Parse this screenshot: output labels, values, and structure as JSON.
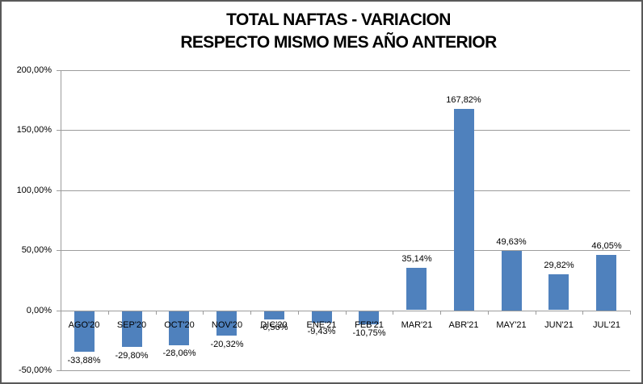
{
  "title": {
    "line1": "TOTAL NAFTAS - VARIACION",
    "line2": "RESPECTO MISMO MES AÑO ANTERIOR"
  },
  "chart_data": {
    "type": "bar",
    "title": "TOTAL NAFTAS - VARIACION RESPECTO MISMO MES AÑO ANTERIOR",
    "categories": [
      "AGO'20",
      "SEP'20",
      "OCT'20",
      "NOV'20",
      "DIC'20",
      "ENE'21",
      "FEB'21",
      "MAR'21",
      "ABR'21",
      "MAY'21",
      "JUN'21",
      "JUL'21"
    ],
    "values": [
      -33.88,
      -29.8,
      -28.06,
      -20.32,
      -6.56,
      -9.43,
      -10.75,
      35.14,
      167.82,
      49.63,
      29.82,
      46.05
    ],
    "value_labels": [
      "-33,88%",
      "-29,80%",
      "-28,06%",
      "-20,32%",
      "-6,56%",
      "-9,43%",
      "-10,75%",
      "35,14%",
      "167,82%",
      "49,63%",
      "29,82%",
      "46,05%"
    ],
    "y_tick_values": [
      200,
      150,
      100,
      50,
      0,
      -50
    ],
    "y_tick_labels": [
      "200,00%",
      "150,00%",
      "100,00%",
      "50,00%",
      "0,00%",
      "-50,00%"
    ],
    "xlabel": "",
    "ylabel": "",
    "ylim": [
      -50,
      200
    ],
    "grid": true,
    "legend": false,
    "bar_color": "#4F81BD"
  },
  "colors": {
    "bar": "#4F81BD",
    "gridline": "#9C9C9C",
    "axis": "#9C9C9C",
    "text": "#000000",
    "chart_border": "#595959",
    "background": "#FFFFFF"
  }
}
